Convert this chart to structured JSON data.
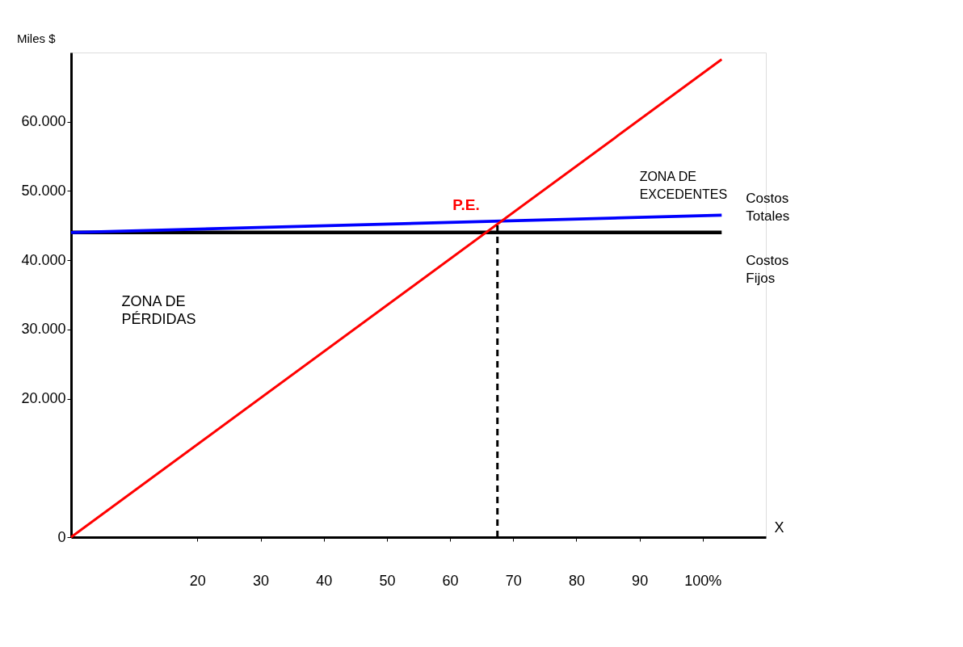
{
  "chart_data": {
    "type": "line",
    "xlabel": "X",
    "ylabel": "Miles $",
    "xlim": [
      0,
      110
    ],
    "ylim": [
      0,
      70000
    ],
    "xticks": [
      20,
      30,
      40,
      50,
      60,
      70,
      80,
      90,
      {
        "value": 100,
        "label": "100%"
      }
    ],
    "yticks": [
      0,
      {
        "value": 20000,
        "label": "20.000"
      },
      {
        "value": 30000,
        "label": "30.000"
      },
      {
        "value": 40000,
        "label": "40.000"
      },
      {
        "value": 50000,
        "label": "50.000"
      },
      {
        "value": 60000,
        "label": "60.000"
      }
    ],
    "x": [
      0,
      103
    ],
    "series": [
      {
        "color": "#ff0000",
        "values": [
          0,
          69000
        ]
      },
      {
        "name": "Costos Totales",
        "color": "#0000ff",
        "values": [
          44000,
          46500
        ]
      },
      {
        "name": "Costos Fijos",
        "color": "#000000",
        "values": [
          44000,
          44000
        ]
      }
    ],
    "ref_lines": [
      {
        "axis": "x",
        "value": 67.5,
        "label": null,
        "color": "#000000",
        "line_style": "dashed"
      }
    ],
    "annotations": [
      {
        "text": "P.E.",
        "x": 67.5,
        "y": 45400
      },
      "ZONA DE EXCEDENTES",
      "ZONA DE PÉRDIDAS"
    ],
    "grid": false,
    "legend": false,
    "marker": "none",
    "line_style": "solid"
  }
}
